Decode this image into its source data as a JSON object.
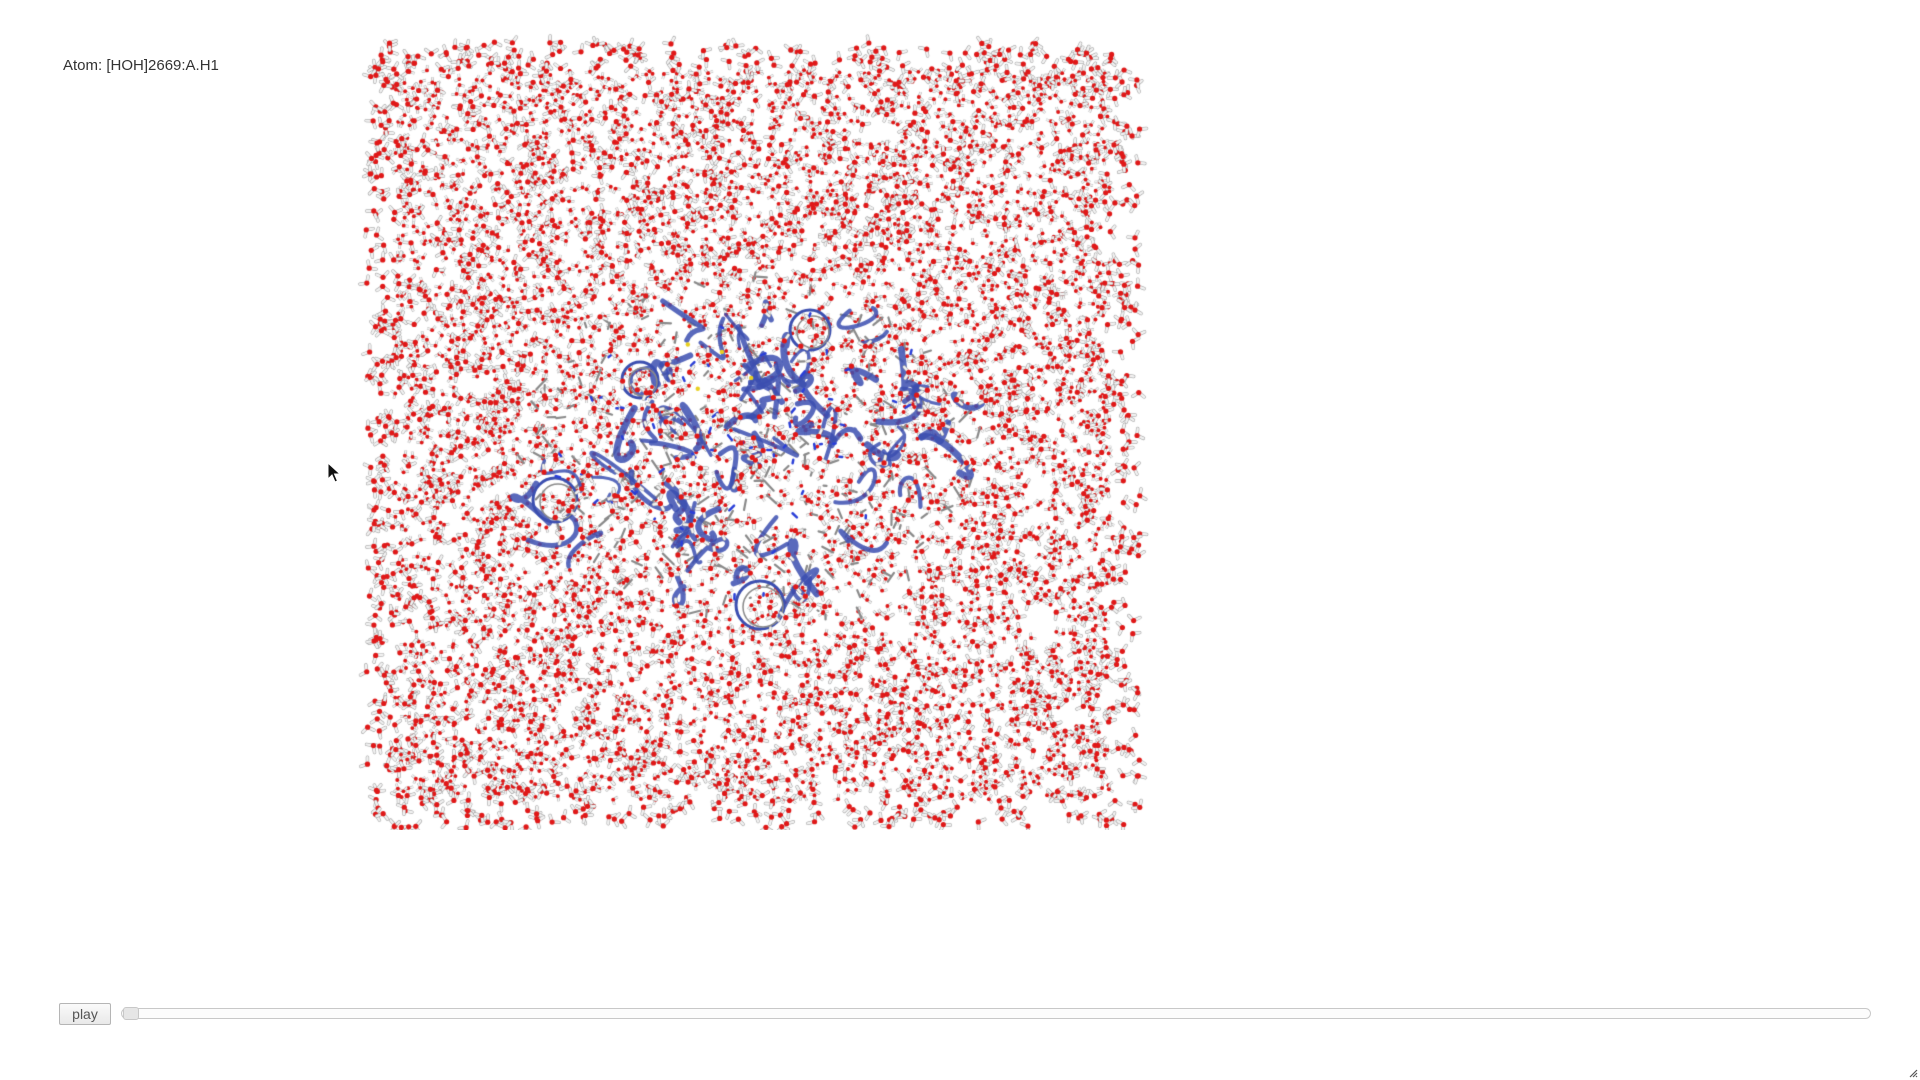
{
  "viewer": {
    "atom_info": "Atom: [HOH]2669:A.H1",
    "colors": {
      "background": "#ffffff",
      "oxygen": "#e01818",
      "hydrogen": "#f2f2f2",
      "hydrogen_edge": "#9a9a9a",
      "protein_ribbon": "#3c4fb0",
      "protein_carbon": "#8a8a8a",
      "nitrogen": "#2a3fd8",
      "sulfur": "#e8d020"
    },
    "scene": {
      "waters": "solvent-box",
      "protein": "cartoon-ribbon-with-sticks",
      "icon": "molecule-water-box"
    }
  },
  "controls": {
    "play_label": "play",
    "slider": {
      "frame_fraction": 0.0,
      "icon": "slider-handle"
    }
  },
  "cursor": {
    "icon": "arrow-pointer-icon"
  }
}
